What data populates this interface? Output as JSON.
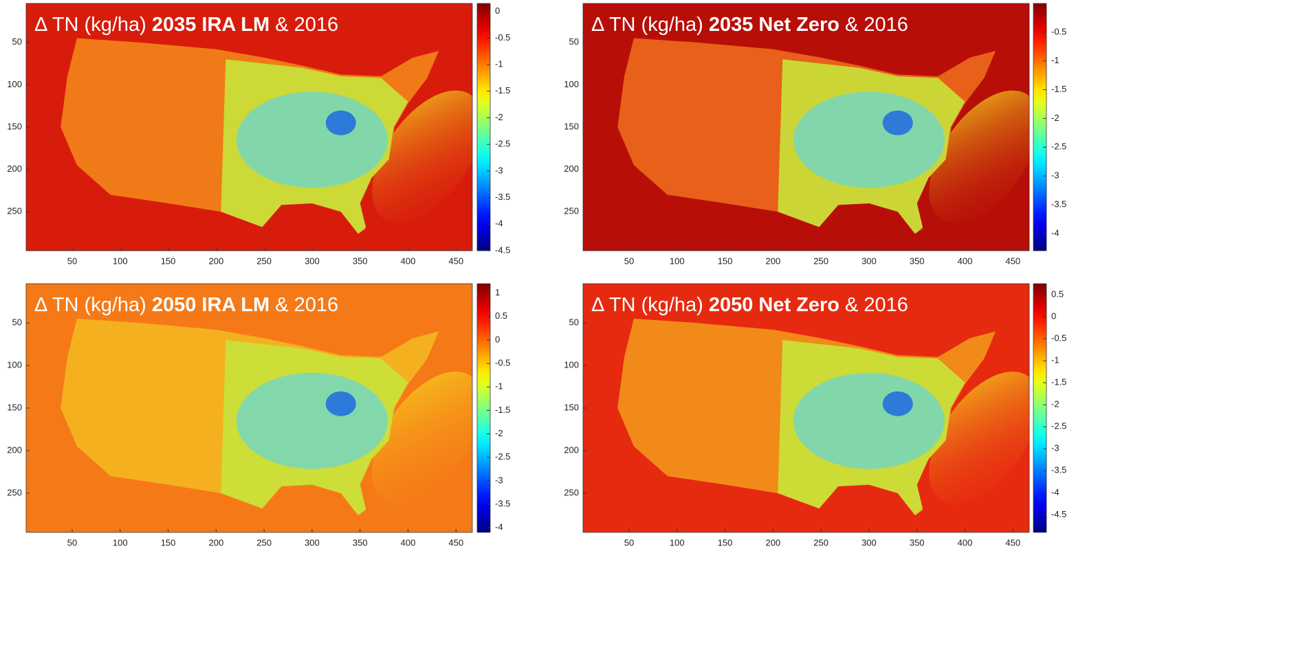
{
  "chart_data": [
    {
      "type": "heatmap",
      "title_parts": [
        "Δ TN (kg/ha)",
        "2035 IRA LM",
        "& 2016"
      ],
      "colormap": "jet",
      "xlim": [
        2,
        467
      ],
      "xticks": [
        50,
        100,
        150,
        200,
        250,
        300,
        350,
        400,
        450
      ],
      "ylim": [
        4,
        296
      ],
      "yticks": [
        50,
        100,
        150,
        200,
        250
      ],
      "clim": [
        -4.5,
        0.15
      ],
      "cticks": [
        0,
        -0.5,
        -1,
        -1.5,
        -2,
        -2.5,
        -3,
        -3.5,
        -4,
        -4.5
      ]
    },
    {
      "type": "heatmap",
      "title_parts": [
        "Δ TN (kg/ha)",
        "2035 Net Zero",
        "& 2016"
      ],
      "colormap": "jet",
      "xlim": [
        2,
        467
      ],
      "xticks": [
        50,
        100,
        150,
        200,
        250,
        300,
        350,
        400,
        450
      ],
      "ylim": [
        4,
        296
      ],
      "yticks": [
        50,
        100,
        150,
        200,
        250
      ],
      "clim": [
        -4.3,
        0
      ],
      "cticks": [
        -0.5,
        -1,
        -1.5,
        -2,
        -2.5,
        -3,
        -3.5,
        -4
      ]
    },
    {
      "type": "heatmap",
      "title_parts": [
        "Δ TN (kg/ha)",
        "2050 IRA LM",
        "& 2016"
      ],
      "colormap": "jet",
      "xlim": [
        2,
        467
      ],
      "xticks": [
        50,
        100,
        150,
        200,
        250,
        300,
        350,
        400,
        450
      ],
      "ylim": [
        4,
        296
      ],
      "yticks": [
        50,
        100,
        150,
        200,
        250
      ],
      "clim": [
        -4.1,
        1.2
      ],
      "cticks": [
        1,
        0.5,
        0,
        -0.5,
        -1,
        -1.5,
        -2,
        -2.5,
        -3,
        -3.5,
        -4
      ]
    },
    {
      "type": "heatmap",
      "title_parts": [
        "Δ TN (kg/ha)",
        "2050 Net Zero",
        "& 2016"
      ],
      "colormap": "jet",
      "xlim": [
        2,
        467
      ],
      "xticks": [
        50,
        100,
        150,
        200,
        250,
        300,
        350,
        400,
        450
      ],
      "ylim": [
        4,
        296
      ],
      "yticks": [
        50,
        100,
        150,
        200,
        250
      ],
      "clim": [
        -4.9,
        0.75
      ],
      "cticks": [
        0.5,
        0,
        -0.5,
        -1,
        -1.5,
        -2,
        -2.5,
        -3,
        -3.5,
        -4,
        -4.5
      ]
    }
  ]
}
